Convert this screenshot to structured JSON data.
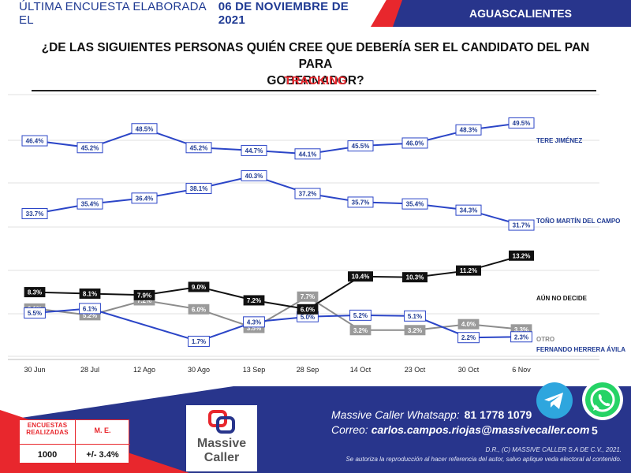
{
  "header": {
    "survey_label": "ÚLTIMA ENCUESTA ELABORADA EL",
    "survey_date": "06 DE NOVIEMBRE DE 2021",
    "region": "AGUASCALIENTES"
  },
  "title_line1": "¿DE LAS SIGUIENTES PERSONAS QUIÉN CREE QUE DEBERÍA SER EL CANDIDATO DEL PAN PARA",
  "title_line2": "GOBERNADOR?",
  "subtitle": "TRACKING",
  "chart_data": {
    "type": "line",
    "title": "¿DE LAS SIGUIENTES PERSONAS QUIÉN CREE QUE DEBERÍA SER EL CANDIDATO DEL PAN PARA GOBERNADOR?",
    "subtitle": "TRACKING",
    "categories": [
      "30 Jun",
      "28 Jul",
      "12 Ago",
      "30 Ago",
      "13 Sep",
      "28 Sep",
      "14 Oct",
      "23 Oct",
      "30 Oct",
      "6 Nov"
    ],
    "grid": true,
    "legend": "right-end-labels",
    "series": [
      {
        "name": "TERE JIMÉNEZ",
        "color": "#2b45c7",
        "values": [
          46.4,
          45.2,
          48.5,
          45.2,
          44.7,
          44.1,
          45.5,
          46.0,
          48.3,
          49.5
        ]
      },
      {
        "name": "TOÑO MARTÍN DEL CAMPO",
        "color": "#2b45c7",
        "values": [
          33.7,
          35.4,
          36.4,
          38.1,
          40.3,
          37.2,
          35.7,
          35.4,
          34.3,
          31.7
        ]
      },
      {
        "name": "AÚN NO DECIDE",
        "color": "#111111",
        "values": [
          8.3,
          8.1,
          7.9,
          9.0,
          7.2,
          6.0,
          10.4,
          10.3,
          11.2,
          13.2
        ]
      },
      {
        "name": "OTRO",
        "color": "#8c8c8c",
        "values": [
          6.1,
          5.2,
          7.2,
          6.0,
          3.5,
          7.7,
          3.2,
          3.2,
          4.0,
          3.3
        ]
      },
      {
        "name": "FERNANDO HERRERA ÁVILA",
        "color": "#2b45c7",
        "values": [
          5.5,
          6.1,
          null,
          1.7,
          4.3,
          5.0,
          5.2,
          5.1,
          2.2,
          2.3
        ]
      }
    ]
  },
  "footer": {
    "table_h1": "ENCUESTAS REALIZADAS",
    "table_h2": "M. E.",
    "table_v1": "1000",
    "table_v2": "+/- 3.4%",
    "brand1": "Massive",
    "brand2": "Caller",
    "whatsapp_label": "Massive Caller Whatsapp:",
    "whatsapp_number": "81 1778 1079",
    "email_label": "Correo:",
    "email": "carlos.campos.riojas@massivecaller.com",
    "page_number": "5",
    "copyright1": "D.R., (C) MASSIVE CALLER S.A DE C.V., 2021.",
    "copyright2": "Se autoriza la reproducción al hacer referencia del autor, salvo aplique veda electoral al contenido.",
    "telegram_icon": "telegram-icon",
    "whatsapp_icon": "whatsapp-icon"
  }
}
